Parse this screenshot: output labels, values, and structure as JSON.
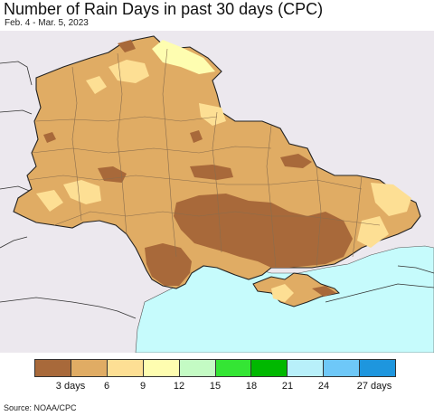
{
  "title": "Number of Rain Days in past 30 days (CPC)",
  "subtitle": "Feb. 4 - Mar. 5, 2023",
  "source": "Source: NOAA/CPC",
  "legend": {
    "swatches": [
      {
        "name": "legend-swatch-0-3",
        "color": "#a8693a"
      },
      {
        "name": "legend-swatch-3-6",
        "color": "#e0ac64"
      },
      {
        "name": "legend-swatch-6-9",
        "color": "#fddf94"
      },
      {
        "name": "legend-swatch-9-12",
        "color": "#fefdb0"
      },
      {
        "name": "legend-swatch-12-15",
        "color": "#c4fbc4"
      },
      {
        "name": "legend-swatch-15-18",
        "color": "#34e534"
      },
      {
        "name": "legend-swatch-18-21",
        "color": "#00b800"
      },
      {
        "name": "legend-swatch-21-24",
        "color": "#b8f0fa"
      },
      {
        "name": "legend-swatch-24-27",
        "color": "#6ec8f8"
      },
      {
        "name": "legend-swatch-27-plus",
        "color": "#1e96de"
      }
    ],
    "labels": [
      "3 days",
      "6",
      "9",
      "12",
      "15",
      "18",
      "21",
      "24",
      "27 days"
    ]
  },
  "map_colors": {
    "outside": "#ece8ee",
    "sea": "#c6fbfc",
    "low": "#a8693a",
    "mid": "#e0ac64",
    "light": "#fddf94",
    "lighter": "#fefdb0",
    "border": "#222222",
    "oblast": "#8a6d4d"
  }
}
